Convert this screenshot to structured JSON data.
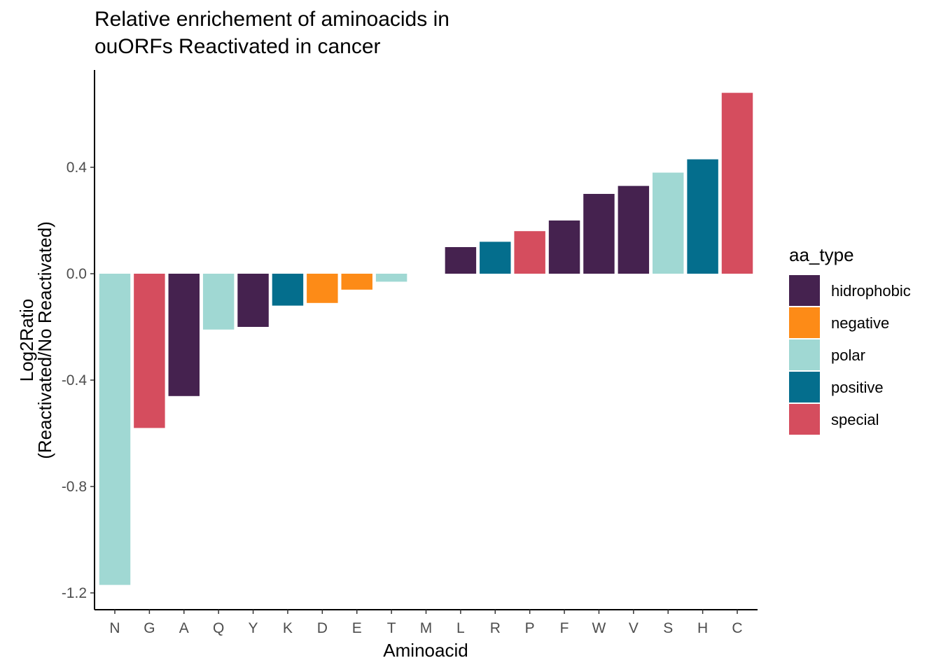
{
  "chart_data": {
    "type": "bar",
    "title": [
      "Relative enrichement of aminoacids in",
      "ouORFs Reactivated in cancer"
    ],
    "xlabel": "Aminoacid",
    "ylabel": [
      "Log2Ratio",
      "(Reactivated/No Reactivated)"
    ],
    "ylim": [
      -1.27,
      0.76
    ],
    "yticks": [
      "0.4",
      "0.0",
      "-0.4",
      "-0.8",
      "-1.2"
    ],
    "ytick_values": [
      0.4,
      0.0,
      -0.4,
      -0.8,
      -1.2
    ],
    "grid": false,
    "legend_position": "right",
    "legend_title": "aa_type",
    "categories": [
      "N",
      "G",
      "A",
      "Q",
      "Y",
      "K",
      "D",
      "E",
      "T",
      "M",
      "L",
      "R",
      "P",
      "F",
      "W",
      "V",
      "S",
      "H",
      "C"
    ],
    "values": [
      -1.17,
      -0.58,
      -0.46,
      -0.21,
      -0.2,
      -0.12,
      -0.11,
      -0.06,
      -0.03,
      0.0,
      0.1,
      0.12,
      0.16,
      0.2,
      0.3,
      0.33,
      0.38,
      0.43,
      0.68
    ],
    "groups": [
      "polar",
      "special",
      "hidrophobic",
      "polar",
      "hidrophobic",
      "positive",
      "negative",
      "negative",
      "polar",
      "hidrophobic",
      "hidrophobic",
      "positive",
      "special",
      "hidrophobic",
      "hidrophobic",
      "hidrophobic",
      "polar",
      "positive",
      "special"
    ],
    "legend": [
      {
        "label": "hidrophobic",
        "color": "#45224f"
      },
      {
        "label": "negative",
        "color": "#fd8b17"
      },
      {
        "label": "polar",
        "color": "#a0d8d3"
      },
      {
        "label": "positive",
        "color": "#046e8d"
      },
      {
        "label": "special",
        "color": "#d54d5e"
      }
    ]
  }
}
